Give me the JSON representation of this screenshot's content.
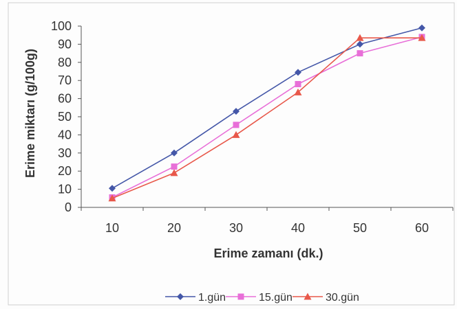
{
  "chart_data": {
    "type": "line",
    "title": "",
    "xlabel": "Erime zamanı (dk.)",
    "ylabel": "Erime miktarı (g/100g)",
    "x": [
      10,
      20,
      30,
      40,
      50,
      60
    ],
    "categories": [
      "10",
      "20",
      "30",
      "40",
      "50",
      "60"
    ],
    "ylim": [
      0,
      100
    ],
    "yticks": [
      "0",
      "10",
      "20",
      "30",
      "40",
      "50",
      "60",
      "70",
      "80",
      "90",
      "100"
    ],
    "grid": false,
    "legend": "bottom",
    "series": [
      {
        "name": "1.gün",
        "color": "#4457a8",
        "marker": "diamond",
        "values": [
          10.5,
          30,
          53,
          74.5,
          90,
          99
        ]
      },
      {
        "name": "15.gün",
        "color": "#e86fd8",
        "marker": "square",
        "values": [
          5.5,
          22.5,
          45.5,
          68,
          85,
          94
        ]
      },
      {
        "name": "30.gün",
        "color": "#e8584a",
        "marker": "triangle",
        "values": [
          5,
          19,
          40,
          63.5,
          93.5,
          93.5
        ]
      }
    ]
  }
}
